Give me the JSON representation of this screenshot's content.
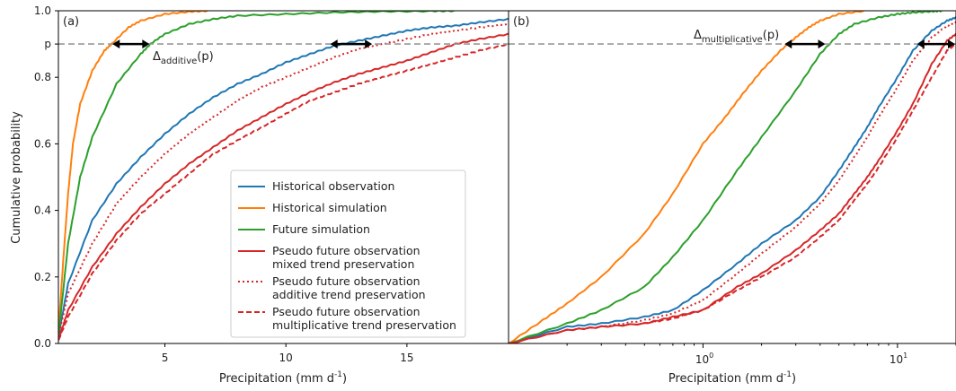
{
  "figure": {
    "ylabel": "Cumulative probability",
    "p_label": "p",
    "p_value": 0.9
  },
  "panels": [
    {
      "label": "(a)",
      "xlabel_main": "Precipitation (mm d",
      "xlabel_sup": "-1",
      "xlabel_end": ")",
      "annotation_main": "Δ",
      "annotation_sub": "additive",
      "annotation_end": "(p)"
    },
    {
      "label": "(b)",
      "xlabel_main": "Precipitation (mm d",
      "xlabel_sup": "-1",
      "xlabel_end": ")",
      "annotation_main": "Δ",
      "annotation_sub": "multiplicative",
      "annotation_end": "(p)",
      "xtick_labels": [
        {
          "base": "10",
          "exp": "0"
        },
        {
          "base": "10",
          "exp": "1"
        }
      ]
    }
  ],
  "legend": {
    "entries": [
      {
        "lines": [
          "Historical observation"
        ],
        "color": "#1f77b4",
        "dash": "solid"
      },
      {
        "lines": [
          "Historical simulation"
        ],
        "color": "#ff7f0e",
        "dash": "solid"
      },
      {
        "lines": [
          "Future simulation"
        ],
        "color": "#2ca02c",
        "dash": "solid"
      },
      {
        "lines": [
          "Pseudo future observation",
          "mixed trend preservation"
        ],
        "color": "#d62728",
        "dash": "solid"
      },
      {
        "lines": [
          "Pseudo future observation",
          "additive trend preservation"
        ],
        "color": "#d62728",
        "dash": "dotted"
      },
      {
        "lines": [
          "Pseudo future observation",
          "multiplicative trend preservation"
        ],
        "color": "#d62728",
        "dash": "dashed"
      }
    ]
  },
  "chart_data": [
    {
      "type": "line",
      "panel": "(a)",
      "xlabel": "Precipitation (mm d-1)",
      "ylabel": "Cumulative probability",
      "xlim": [
        0.6,
        19.2
      ],
      "ylim": [
        0,
        1
      ],
      "xticks": [
        5,
        10,
        15
      ],
      "yticks": [
        0.0,
        0.2,
        0.4,
        0.6,
        0.8,
        1.0
      ],
      "ytick_labels": [
        "0.0",
        "0.2",
        "0.4",
        "0.6",
        "0.8",
        "1.0"
      ],
      "series": [
        {
          "name": "Historical observation",
          "color": "#1f77b4",
          "dash": "solid",
          "x": [
            0.6,
            1,
            2,
            3,
            4,
            5,
            6,
            7,
            8,
            9,
            10,
            11,
            12,
            13,
            14,
            15,
            16,
            17,
            18,
            19.2
          ],
          "y": [
            0.02,
            0.18,
            0.37,
            0.48,
            0.56,
            0.63,
            0.69,
            0.74,
            0.78,
            0.81,
            0.845,
            0.87,
            0.895,
            0.91,
            0.925,
            0.94,
            0.95,
            0.955,
            0.965,
            0.975
          ]
        },
        {
          "name": "Historical simulation",
          "color": "#ff7f0e",
          "dash": "solid",
          "x": [
            0.6,
            0.8,
            1,
            1.2,
            1.5,
            2,
            2.5,
            2.8,
            3.5,
            4,
            5,
            6,
            6.8
          ],
          "y": [
            0.03,
            0.25,
            0.45,
            0.6,
            0.72,
            0.82,
            0.88,
            0.9,
            0.95,
            0.97,
            0.99,
            0.997,
            1.0
          ]
        },
        {
          "name": "Future simulation",
          "color": "#2ca02c",
          "dash": "solid",
          "x": [
            0.6,
            1,
            1.5,
            2,
            3,
            4,
            4.4,
            5,
            6,
            7,
            8,
            10,
            12,
            14,
            16,
            17
          ],
          "y": [
            0.02,
            0.3,
            0.5,
            0.62,
            0.78,
            0.87,
            0.9,
            0.93,
            0.96,
            0.975,
            0.985,
            0.99,
            0.995,
            0.998,
            0.999,
            1.0
          ]
        },
        {
          "name": "Pseudo future observation mixed trend preservation",
          "color": "#d62728",
          "dash": "solid",
          "x": [
            0.6,
            1,
            2,
            3,
            4,
            5,
            6,
            7,
            8,
            9,
            10,
            11,
            12,
            13,
            14,
            15,
            16,
            17,
            18,
            19.2
          ],
          "y": [
            0.01,
            0.1,
            0.23,
            0.33,
            0.41,
            0.48,
            0.54,
            0.59,
            0.64,
            0.68,
            0.72,
            0.755,
            0.785,
            0.81,
            0.83,
            0.85,
            0.875,
            0.9,
            0.915,
            0.93
          ]
        },
        {
          "name": "Pseudo future observation additive trend preservation",
          "color": "#d62728",
          "dash": "dotted",
          "x": [
            0.6,
            1,
            2,
            3,
            4,
            5,
            6,
            7,
            8,
            9,
            10,
            11,
            12,
            13,
            14,
            15,
            16,
            17,
            18,
            19.2
          ],
          "y": [
            0.02,
            0.15,
            0.3,
            0.42,
            0.5,
            0.57,
            0.63,
            0.68,
            0.73,
            0.77,
            0.8,
            0.83,
            0.86,
            0.885,
            0.9,
            0.915,
            0.93,
            0.94,
            0.95,
            0.96
          ]
        },
        {
          "name": "Pseudo future observation multiplicative trend preservation",
          "color": "#d62728",
          "dash": "dashed",
          "x": [
            0.6,
            1,
            2,
            3,
            4,
            5,
            6,
            7,
            8,
            9,
            10,
            11,
            12,
            13,
            14,
            15,
            16,
            17,
            18,
            19.2
          ],
          "y": [
            0.01,
            0.08,
            0.21,
            0.31,
            0.39,
            0.45,
            0.51,
            0.57,
            0.61,
            0.65,
            0.69,
            0.73,
            0.755,
            0.78,
            0.8,
            0.82,
            0.84,
            0.86,
            0.88,
            0.9
          ]
        }
      ],
      "annotation_arrows": [
        [
          2.8,
          4.4
        ],
        [
          11.8,
          13.6
        ]
      ]
    },
    {
      "type": "line",
      "panel": "(b)",
      "xscale": "log",
      "xlabel": "Precipitation (mm d-1)",
      "xlim": [
        0.1,
        20
      ],
      "ylim": [
        0,
        1
      ],
      "xticks": [
        1,
        10
      ],
      "series": [
        {
          "name": "Historical observation",
          "color": "#1f77b4",
          "dash": "solid",
          "x": [
            0.1,
            0.2,
            0.3,
            0.5,
            0.7,
            1.0,
            1.5,
            2,
            3,
            4,
            5,
            6,
            7,
            8,
            10,
            12,
            15,
            18,
            20
          ],
          "y": [
            0.0,
            0.05,
            0.06,
            0.08,
            0.1,
            0.16,
            0.24,
            0.3,
            0.37,
            0.44,
            0.52,
            0.59,
            0.65,
            0.71,
            0.8,
            0.88,
            0.94,
            0.97,
            0.98
          ]
        },
        {
          "name": "Historical simulation",
          "color": "#ff7f0e",
          "dash": "solid",
          "x": [
            0.1,
            0.15,
            0.2,
            0.3,
            0.5,
            0.7,
            1.0,
            1.3,
            1.6,
            2,
            2.5,
            3,
            3.5,
            4,
            5,
            6.8
          ],
          "y": [
            0.0,
            0.07,
            0.12,
            0.2,
            0.33,
            0.45,
            0.6,
            0.68,
            0.75,
            0.82,
            0.88,
            0.92,
            0.95,
            0.97,
            0.99,
            1.0
          ]
        },
        {
          "name": "Future simulation",
          "color": "#2ca02c",
          "dash": "solid",
          "x": [
            0.1,
            0.2,
            0.3,
            0.5,
            0.7,
            1.0,
            1.5,
            2,
            3,
            4,
            5,
            6,
            8,
            10,
            12,
            15,
            17
          ],
          "y": [
            0.0,
            0.06,
            0.1,
            0.17,
            0.26,
            0.37,
            0.52,
            0.62,
            0.76,
            0.87,
            0.93,
            0.96,
            0.98,
            0.99,
            0.995,
            0.998,
            1.0
          ]
        },
        {
          "name": "Pseudo future observation mixed trend preservation",
          "color": "#d62728",
          "dash": "solid",
          "x": [
            0.1,
            0.2,
            0.3,
            0.5,
            0.7,
            1.0,
            1.5,
            2,
            3,
            4,
            5,
            6,
            7,
            8,
            10,
            12,
            15,
            18,
            20
          ],
          "y": [
            0.0,
            0.04,
            0.05,
            0.06,
            0.08,
            0.1,
            0.17,
            0.21,
            0.28,
            0.34,
            0.39,
            0.45,
            0.5,
            0.55,
            0.64,
            0.72,
            0.84,
            0.91,
            0.93
          ]
        },
        {
          "name": "Pseudo future observation additive trend preservation",
          "color": "#d62728",
          "dash": "dotted",
          "x": [
            0.1,
            0.2,
            0.3,
            0.5,
            0.7,
            1.0,
            1.5,
            2,
            3,
            4,
            5,
            6,
            7,
            8,
            10,
            12,
            15,
            18,
            20
          ],
          "y": [
            0.0,
            0.04,
            0.05,
            0.07,
            0.09,
            0.13,
            0.21,
            0.27,
            0.35,
            0.42,
            0.49,
            0.56,
            0.62,
            0.68,
            0.77,
            0.85,
            0.92,
            0.955,
            0.965
          ]
        },
        {
          "name": "Pseudo future observation multiplicative trend preservation",
          "color": "#d62728",
          "dash": "dashed",
          "x": [
            0.1,
            0.2,
            0.3,
            0.5,
            0.7,
            1.0,
            1.5,
            2,
            3,
            4,
            5,
            6,
            7,
            8,
            10,
            12,
            15,
            18,
            20
          ],
          "y": [
            0.0,
            0.04,
            0.05,
            0.06,
            0.075,
            0.1,
            0.16,
            0.2,
            0.26,
            0.32,
            0.37,
            0.43,
            0.48,
            0.53,
            0.62,
            0.7,
            0.8,
            0.88,
            0.9
          ]
        }
      ],
      "annotation_arrows": [
        [
          2.6,
          4.3
        ],
        [
          12.5,
          20
        ]
      ]
    }
  ]
}
